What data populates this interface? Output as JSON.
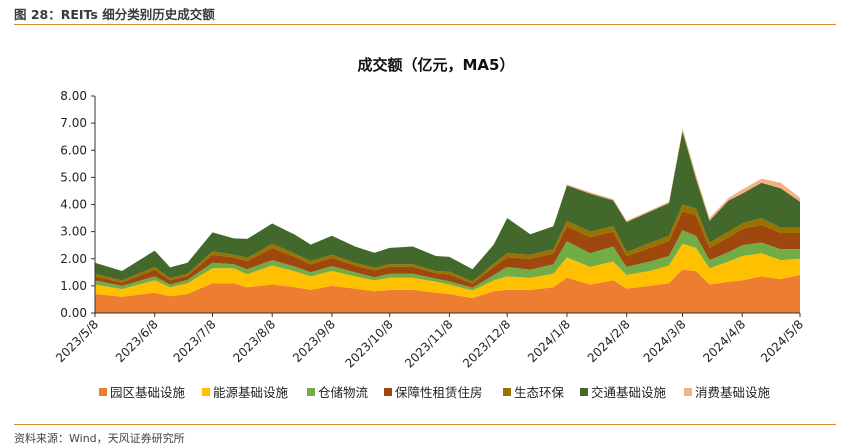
{
  "header": {
    "caption": "图 28：REITs 细分类别历史成交额"
  },
  "footer": {
    "source": "资料来源：Wind，天风证券研究所"
  },
  "colors": {
    "rule": "#d98b3a",
    "series": [
      "#ed7d31",
      "#ffc000",
      "#70ad47",
      "#9e480e",
      "#997300",
      "#43682b",
      "#f4b183"
    ]
  },
  "chart_data": {
    "type": "area",
    "stacked": true,
    "title": "成交额（亿元，MA5）",
    "xlabel": "",
    "ylabel": "",
    "ylim": [
      0,
      8
    ],
    "yticks": [
      "0.00",
      "1.00",
      "2.00",
      "3.00",
      "4.00",
      "5.00",
      "6.00",
      "7.00",
      "8.00"
    ],
    "xticks": [
      "2023/5/8",
      "2023/6/8",
      "2023/7/8",
      "2023/8/8",
      "2023/9/8",
      "2023/10/8",
      "2023/11/8",
      "2023/12/8",
      "2024/1/8",
      "2024/2/8",
      "2024/3/8",
      "2024/4/8",
      "2024/5/8"
    ],
    "legend_position": "bottom",
    "x": [
      "2023/5/8",
      "2023/5/22",
      "2023/6/8",
      "2023/6/16",
      "2023/6/25",
      "2023/7/8",
      "2023/7/19",
      "2023/7/26",
      "2023/8/8",
      "2023/8/20",
      "2023/8/28",
      "2023/9/8",
      "2023/9/20",
      "2023/9/30",
      "2023/10/8",
      "2023/10/20",
      "2023/11/1",
      "2023/11/8",
      "2023/11/20",
      "2023/12/1",
      "2023/12/8",
      "2023/12/20",
      "2024/1/1",
      "2024/1/8",
      "2024/1/20",
      "2024/2/1",
      "2024/2/8",
      "2024/2/20",
      "2024/3/1",
      "2024/3/8",
      "2024/3/15",
      "2024/3/22",
      "2024/4/1",
      "2024/4/8",
      "2024/4/18",
      "2024/4/28",
      "2024/5/8"
    ],
    "series": [
      {
        "name": "园区基础设施",
        "values": [
          0.7,
          0.6,
          0.75,
          0.62,
          0.7,
          1.1,
          1.1,
          0.95,
          1.05,
          0.95,
          0.85,
          1.0,
          0.9,
          0.8,
          0.85,
          0.85,
          0.75,
          0.7,
          0.55,
          0.8,
          0.85,
          0.85,
          0.95,
          1.3,
          1.05,
          1.2,
          0.9,
          1.0,
          1.1,
          1.6,
          1.55,
          1.05,
          1.15,
          1.2,
          1.35,
          1.25,
          1.4
        ]
      },
      {
        "name": "能源基础设施",
        "values": [
          0.35,
          0.28,
          0.45,
          0.33,
          0.4,
          0.55,
          0.55,
          0.48,
          0.7,
          0.58,
          0.5,
          0.55,
          0.45,
          0.4,
          0.45,
          0.45,
          0.4,
          0.35,
          0.28,
          0.4,
          0.5,
          0.45,
          0.5,
          0.75,
          0.65,
          0.7,
          0.5,
          0.55,
          0.65,
          0.95,
          0.85,
          0.6,
          0.75,
          0.9,
          0.85,
          0.7,
          0.6
        ]
      },
      {
        "name": "仓储物流",
        "values": [
          0.15,
          0.12,
          0.15,
          0.1,
          0.12,
          0.2,
          0.15,
          0.18,
          0.2,
          0.18,
          0.15,
          0.18,
          0.15,
          0.12,
          0.15,
          0.15,
          0.12,
          0.12,
          0.1,
          0.2,
          0.35,
          0.3,
          0.35,
          0.6,
          0.5,
          0.55,
          0.3,
          0.35,
          0.35,
          0.5,
          0.45,
          0.3,
          0.35,
          0.4,
          0.4,
          0.4,
          0.35
        ]
      },
      {
        "name": "保障性租赁住房",
        "values": [
          0.15,
          0.12,
          0.25,
          0.15,
          0.15,
          0.3,
          0.25,
          0.3,
          0.45,
          0.35,
          0.3,
          0.3,
          0.25,
          0.25,
          0.25,
          0.25,
          0.2,
          0.25,
          0.15,
          0.3,
          0.35,
          0.4,
          0.4,
          0.55,
          0.6,
          0.55,
          0.4,
          0.5,
          0.55,
          0.7,
          0.75,
          0.45,
          0.55,
          0.6,
          0.65,
          0.6,
          0.6
        ]
      },
      {
        "name": "生态环保",
        "values": [
          0.1,
          0.08,
          0.1,
          0.08,
          0.08,
          0.12,
          0.1,
          0.12,
          0.15,
          0.12,
          0.12,
          0.12,
          0.1,
          0.1,
          0.1,
          0.1,
          0.08,
          0.1,
          0.08,
          0.12,
          0.15,
          0.15,
          0.15,
          0.2,
          0.2,
          0.2,
          0.15,
          0.18,
          0.2,
          0.25,
          0.25,
          0.2,
          0.2,
          0.2,
          0.25,
          0.2,
          0.2
        ]
      },
      {
        "name": "交通基础设施",
        "values": [
          0.4,
          0.35,
          0.6,
          0.4,
          0.4,
          0.7,
          0.6,
          0.7,
          0.75,
          0.7,
          0.6,
          0.7,
          0.6,
          0.55,
          0.6,
          0.65,
          0.55,
          0.55,
          0.45,
          0.7,
          1.3,
          0.75,
          0.85,
          1.3,
          1.4,
          0.95,
          1.1,
          1.15,
          1.2,
          2.7,
          1.1,
          0.8,
          1.15,
          1.1,
          1.3,
          1.45,
          0.95
        ]
      },
      {
        "name": "消费基础设施",
        "values": [
          0.0,
          0.0,
          0.0,
          0.0,
          0.0,
          0.0,
          0.0,
          0.0,
          0.0,
          0.0,
          0.0,
          0.0,
          0.0,
          0.0,
          0.0,
          0.0,
          0.0,
          0.0,
          0.0,
          0.0,
          0.0,
          0.0,
          0.0,
          0.05,
          0.05,
          0.05,
          0.05,
          0.05,
          0.05,
          0.1,
          0.15,
          0.1,
          0.1,
          0.15,
          0.15,
          0.2,
          0.15
        ]
      }
    ]
  }
}
